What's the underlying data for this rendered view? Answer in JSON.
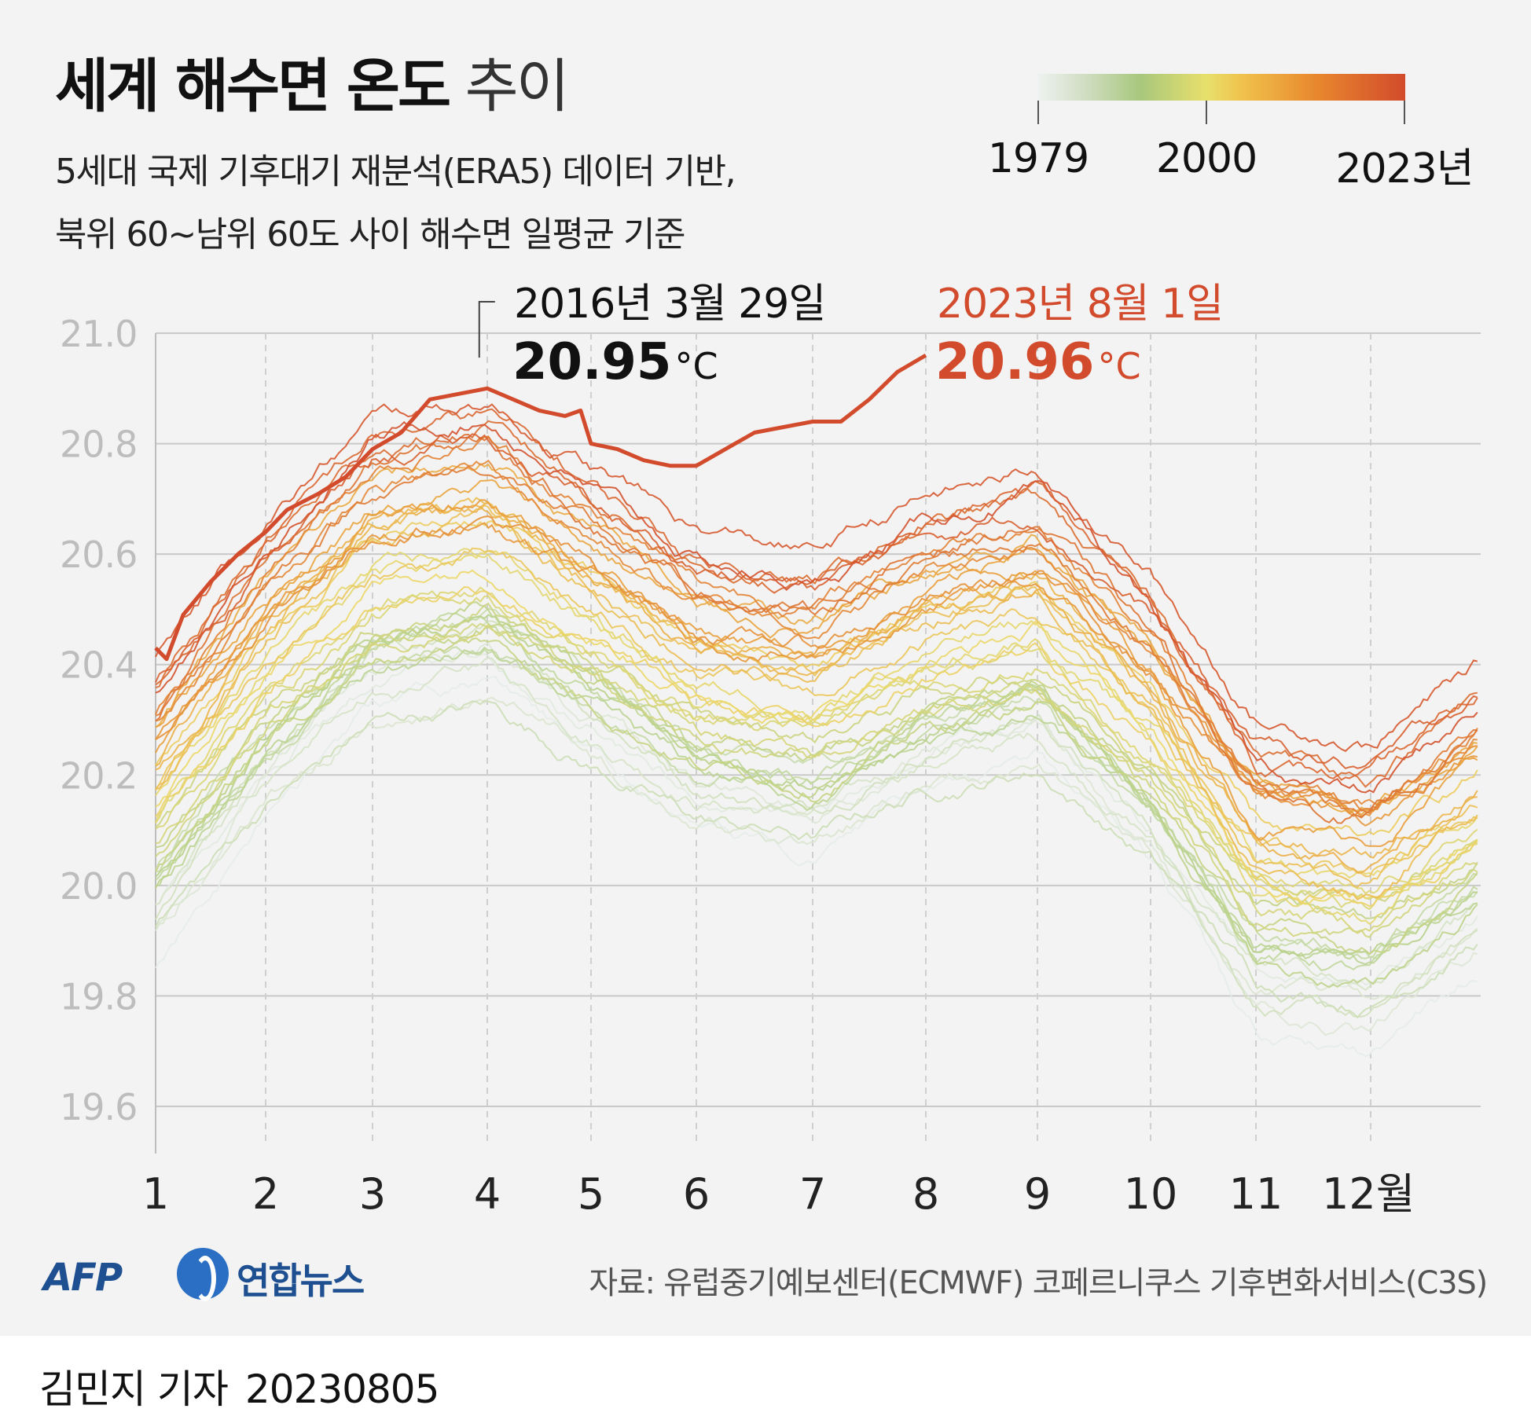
{
  "header": {
    "title_bold": "세계 해수면 온도",
    "title_light": " 추이",
    "subtitle_line1": "5세대 국제 기후대기 재분석(ERA5) 데이터 기반,",
    "subtitle_line2": "북위 60~남위 60도 사이 해수면 일평균 기준"
  },
  "legend": {
    "labels": [
      "1979",
      "2000",
      "2023년"
    ]
  },
  "chart_data": {
    "type": "line",
    "title": "세계 해수면 온도 추이",
    "xlabel": "",
    "ylabel": "",
    "x_ticks": [
      "1",
      "2",
      "3",
      "4",
      "5",
      "6",
      "7",
      "8",
      "9",
      "10",
      "11",
      "12월"
    ],
    "y_ticks": [
      "21.0",
      "20.8",
      "20.6",
      "20.4",
      "20.2",
      "20.0",
      "19.8",
      "19.6"
    ],
    "ylim": [
      19.6,
      21.0
    ],
    "xlim_month": [
      1,
      13
    ],
    "year_range": [
      1979,
      2023
    ],
    "colors": {
      "cold": "#e6ece8",
      "green": "#b9d28c",
      "yellow": "#ecd86a",
      "orange": "#eaa13c",
      "hot": "#d24b2c",
      "highlight": "#d24b2c"
    },
    "series_2023": [
      [
        1.0,
        20.43
      ],
      [
        1.1,
        20.41
      ],
      [
        1.25,
        20.49
      ],
      [
        1.5,
        20.55
      ],
      [
        1.75,
        20.6
      ],
      [
        2.0,
        20.64
      ],
      [
        2.2,
        20.68
      ],
      [
        2.5,
        20.71
      ],
      [
        2.75,
        20.74
      ],
      [
        3.0,
        20.79
      ],
      [
        3.25,
        20.82
      ],
      [
        3.5,
        20.88
      ],
      [
        3.75,
        20.89
      ],
      [
        4.0,
        20.9
      ],
      [
        4.25,
        20.88
      ],
      [
        4.5,
        20.86
      ],
      [
        4.75,
        20.85
      ],
      [
        4.9,
        20.86
      ],
      [
        5.0,
        20.8
      ],
      [
        5.25,
        20.79
      ],
      [
        5.5,
        20.77
      ],
      [
        5.75,
        20.76
      ],
      [
        6.0,
        20.76
      ],
      [
        6.25,
        20.79
      ],
      [
        6.5,
        20.82
      ],
      [
        6.75,
        20.83
      ],
      [
        7.0,
        20.84
      ],
      [
        7.25,
        20.84
      ],
      [
        7.5,
        20.88
      ],
      [
        7.75,
        20.93
      ],
      [
        8.0,
        20.96
      ]
    ],
    "annotations": [
      {
        "date": "2016년 3월 29일",
        "value": "20.95",
        "unit": "°C",
        "x": 3.93,
        "y": 20.95
      },
      {
        "date": "2023년 8월 1일",
        "value": "20.96",
        "unit": "°C",
        "x": 8.0,
        "y": 20.96
      }
    ]
  },
  "footer": {
    "logo_afp": "AFP",
    "logo_yonhap": "연합뉴스",
    "source": "자료: 유럽중기예보센터(ECMWF) 코페르니쿠스 기후변화서비스(C3S)"
  },
  "byline": {
    "reporter": "김민지 기자",
    "date": "20230805"
  }
}
